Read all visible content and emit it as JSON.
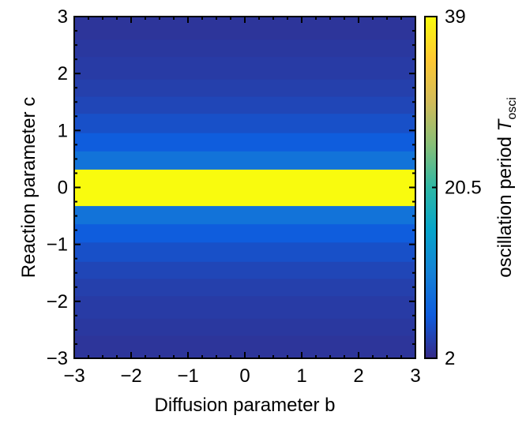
{
  "chart_data": {
    "type": "heatmap",
    "xlabel": "Diffusion parameter b",
    "ylabel": "Reaction parameter c",
    "xlim": [
      -3,
      3
    ],
    "ylim": [
      -3,
      3
    ],
    "x_ticks": [
      "−3",
      "−2",
      "−1",
      "0",
      "1",
      "2",
      "3"
    ],
    "y_ticks": [
      "−3",
      "−2",
      "−1",
      "0",
      "1",
      "2",
      "3"
    ],
    "colorbar": {
      "label_main": "oscillation period ",
      "label_symbol": "T",
      "label_subscript": "osci",
      "min": 2,
      "max": 39,
      "ticks": [
        "2",
        "20.5",
        "39"
      ],
      "colors": [
        "#352a87",
        "#0f5cdd",
        "#1481d6",
        "#06a4ca",
        "#2eb7a4",
        "#87bf77",
        "#d1bb59",
        "#fec832",
        "#f9fb0e"
      ]
    },
    "rows": [
      {
        "c_min": -3.0,
        "c_max": -2.6,
        "period": 3.0
      },
      {
        "c_min": -2.6,
        "c_max": -2.3,
        "period": 3.3
      },
      {
        "c_min": -2.3,
        "c_max": -1.9,
        "period": 3.6
      },
      {
        "c_min": -1.9,
        "c_max": -1.6,
        "period": 4.0
      },
      {
        "c_min": -1.6,
        "c_max": -1.3,
        "period": 4.6
      },
      {
        "c_min": -1.3,
        "c_max": -0.96,
        "period": 5.5
      },
      {
        "c_min": -0.96,
        "c_max": -0.64,
        "period": 6.8
      },
      {
        "c_min": -0.64,
        "c_max": -0.32,
        "period": 9.5
      },
      {
        "c_min": -0.32,
        "c_max": 0.32,
        "period": 39
      },
      {
        "c_min": 0.32,
        "c_max": 0.64,
        "period": 9.5
      },
      {
        "c_min": 0.64,
        "c_max": 0.96,
        "period": 6.8
      },
      {
        "c_min": 0.96,
        "c_max": 1.3,
        "period": 5.5
      },
      {
        "c_min": 1.3,
        "c_max": 1.6,
        "period": 4.6
      },
      {
        "c_min": 1.6,
        "c_max": 1.9,
        "period": 4.0
      },
      {
        "c_min": 1.9,
        "c_max": 2.3,
        "period": 3.6
      },
      {
        "c_min": 2.3,
        "c_max": 2.6,
        "period": 3.3
      },
      {
        "c_min": 2.6,
        "c_max": 3.0,
        "period": 3.0
      }
    ]
  }
}
